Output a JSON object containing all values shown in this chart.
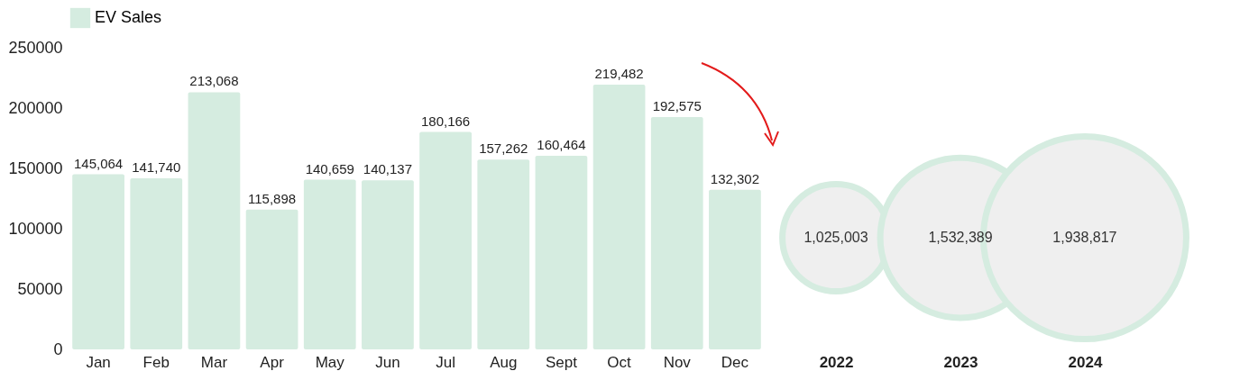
{
  "chart_data": [
    {
      "type": "bar",
      "categories": [
        "Jan",
        "Feb",
        "Mar",
        "Apr",
        "May",
        "Jun",
        "Jul",
        "Aug",
        "Sept",
        "Oct",
        "Nov",
        "Dec"
      ],
      "series": [
        {
          "name": "EV Sales",
          "color": "#d5ece0",
          "values": [
            145064,
            141740,
            213068,
            115898,
            140659,
            140137,
            180166,
            157262,
            160464,
            219482,
            192575,
            132302
          ],
          "value_labels": [
            "145,064",
            "141,740",
            "213,068",
            "115,898",
            "140,659",
            "140,137",
            "180,166",
            "157,262",
            "160,464",
            "219,482",
            "192,575",
            "132,302"
          ]
        }
      ],
      "ylim": [
        0,
        250000
      ],
      "yticks": [
        0,
        50000,
        100000,
        150000,
        200000,
        250000
      ],
      "legend": "top",
      "grid": false
    },
    {
      "type": "other",
      "categories": [
        "2022",
        "2023",
        "2024"
      ],
      "values": [
        1025003,
        1532389,
        1938817
      ],
      "value_labels": [
        "1,025,003",
        "1,532,389",
        "1,938,817"
      ],
      "color": "#efefef"
    }
  ]
}
